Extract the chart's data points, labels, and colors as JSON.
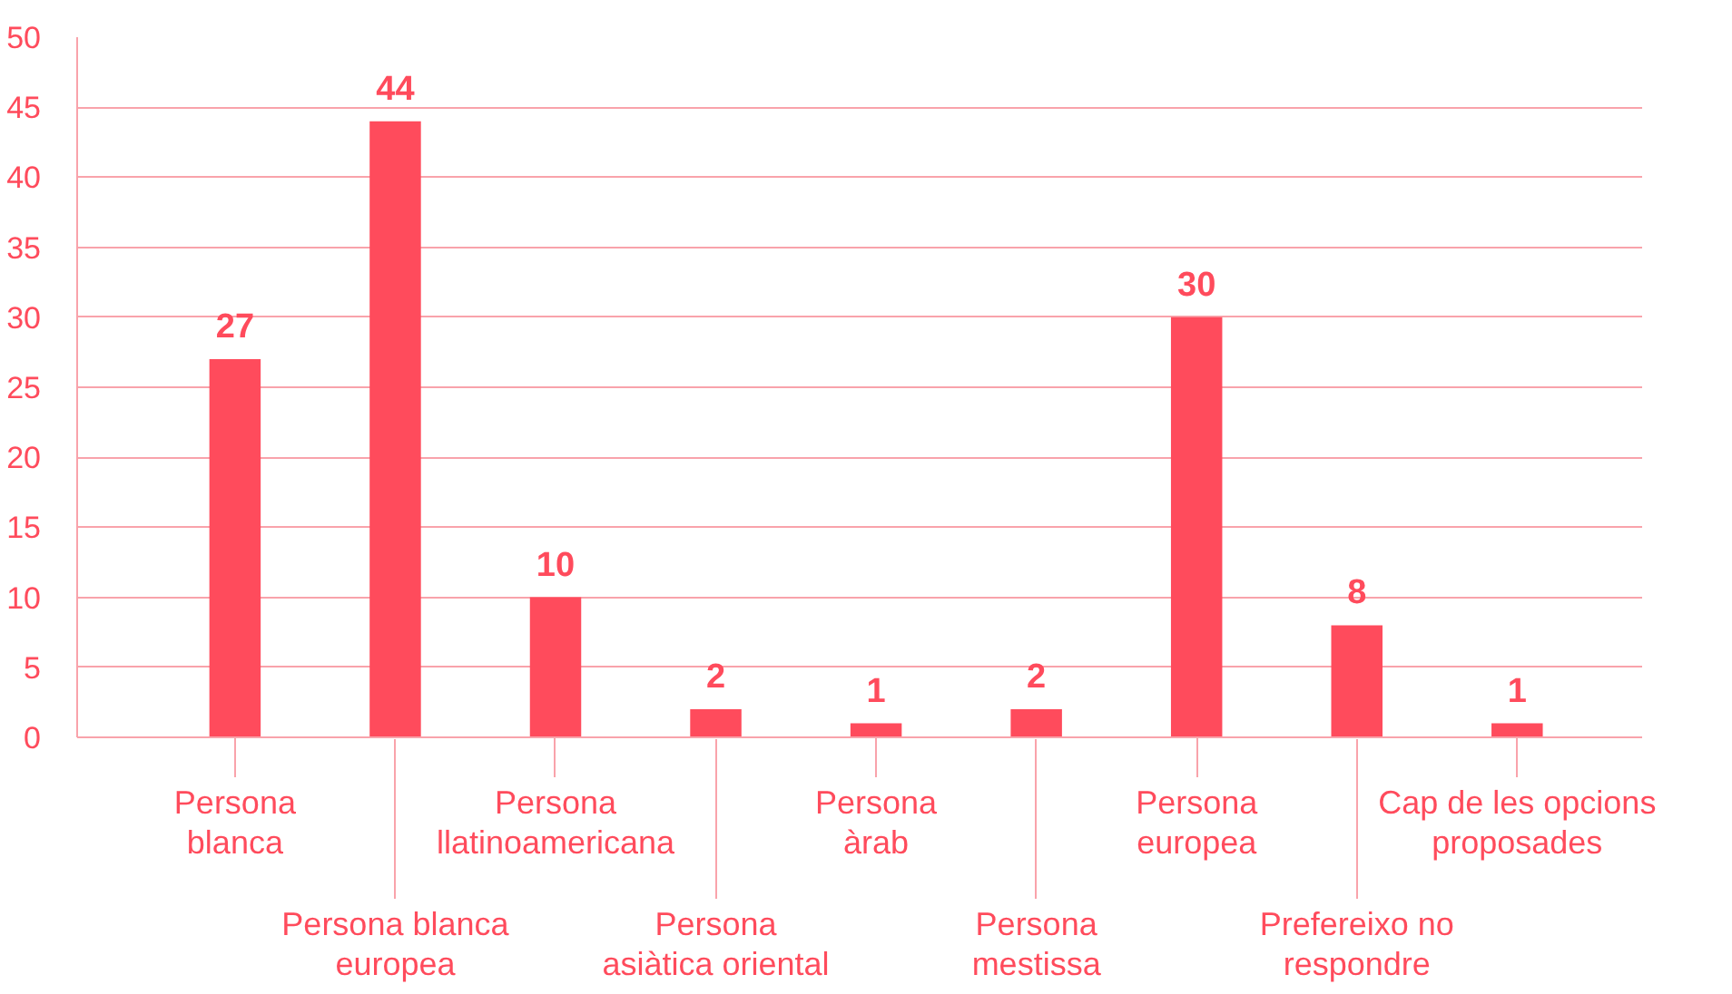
{
  "chart_data": {
    "type": "bar",
    "categories": [
      "Persona\nblanca",
      "Persona blanca\neuropea",
      "Persona\nllatinoamericana",
      "Persona\nasiàtica oriental",
      "Persona\nàrab",
      "Persona\nmestissa",
      "Persona\neuropea",
      "Prefereixo no\nrespondre",
      "Cap de les opcions\nproposades"
    ],
    "values": [
      27,
      44,
      10,
      2,
      1,
      2,
      30,
      8,
      1
    ],
    "color": "#ff4b5c",
    "ylim": [
      0,
      50
    ],
    "yticks": [
      0,
      5,
      10,
      15,
      20,
      25,
      30,
      35,
      40,
      45,
      50
    ],
    "grid": "y",
    "data_labels": true
  }
}
